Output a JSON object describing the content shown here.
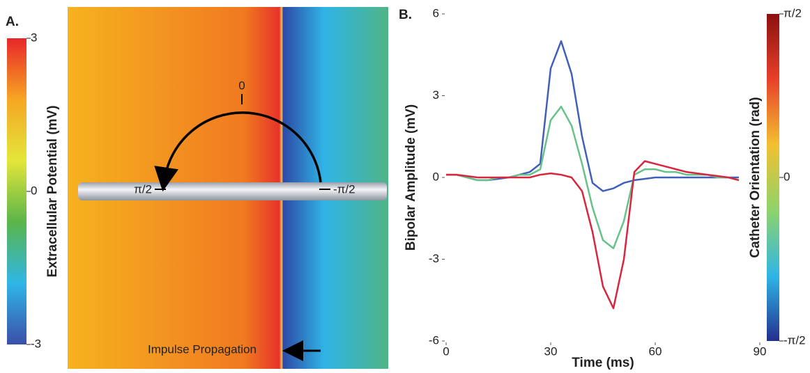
{
  "panel_a": {
    "label": "A.",
    "colorbar": {
      "label": "Extracellular Potential (mV)",
      "clim": [
        -3,
        3
      ],
      "ticks": [
        3,
        0,
        -3
      ],
      "colors": [
        "#3b4fa8",
        "#2fb6e6",
        "#5ab54a",
        "#e3e63a",
        "#f6a623",
        "#e8262a"
      ]
    },
    "angle_labels": [
      "0",
      "π/2",
      "-π/2"
    ],
    "annotation": "Impulse Propagation"
  },
  "chart_data": {
    "type": "line",
    "label": "B.",
    "xlabel": "Time (ms)",
    "ylabel": "Bipolar Amplitude (mV)",
    "x": [
      0,
      3,
      6,
      9,
      12,
      15,
      18,
      21,
      24,
      27,
      30,
      33,
      36,
      39,
      42,
      45,
      48,
      51,
      54,
      57,
      60,
      63,
      66,
      69,
      72,
      75,
      78,
      81,
      84
    ],
    "xlim": [
      0,
      90
    ],
    "xticks": [
      0,
      30,
      60,
      90
    ],
    "ylim": [
      -6,
      6
    ],
    "yticks": [
      6,
      3,
      0,
      -3,
      -6
    ],
    "series": [
      {
        "color": "#3f5fb8",
        "values": [
          0.1,
          0.1,
          0,
          -0.1,
          -0.1,
          -0.05,
          0,
          0.1,
          0.2,
          0.5,
          4.0,
          5.0,
          3.8,
          1.5,
          -0.2,
          -0.5,
          -0.4,
          -0.2,
          -0.1,
          -0.05,
          0,
          0,
          0,
          0,
          0,
          0,
          0,
          0,
          0
        ]
      },
      {
        "color": "#66c28a",
        "values": [
          0.1,
          0.1,
          0,
          -0.1,
          -0.1,
          0,
          0,
          0.1,
          0.1,
          0.3,
          2.1,
          2.6,
          1.9,
          0.5,
          -1.1,
          -2.3,
          -2.6,
          -1.6,
          0.1,
          0.3,
          0.3,
          0.2,
          0.2,
          0.1,
          0.1,
          0.1,
          0,
          0,
          -0.1
        ]
      },
      {
        "color": "#d7263d",
        "values": [
          0.1,
          0.1,
          0.05,
          0,
          0,
          0,
          0,
          0,
          0,
          0.1,
          0.15,
          0.1,
          0,
          -0.5,
          -2.0,
          -4.0,
          -4.8,
          -3.0,
          0.2,
          0.6,
          0.5,
          0.4,
          0.3,
          0.2,
          0.15,
          0.1,
          0.05,
          0,
          -0.1
        ]
      }
    ],
    "colorbar": {
      "label": "Catheter Orientation (rad)",
      "clim": [
        -1.571,
        1.571
      ],
      "ticks": [
        {
          "value": 1.571,
          "label": "π/2"
        },
        0,
        {
          "value": -1.571,
          "label": "-π/2"
        }
      ],
      "colors": [
        "#23308e",
        "#2fb6e6",
        "#8fd36a",
        "#f2c030",
        "#e8402a",
        "#8b1010"
      ]
    }
  }
}
